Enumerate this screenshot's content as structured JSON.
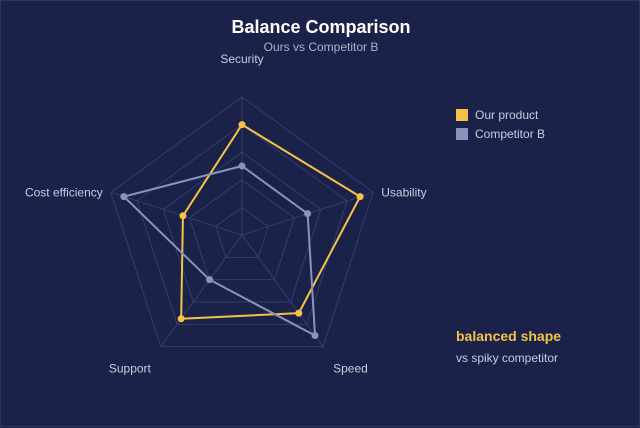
{
  "colors": {
    "background": "#1a2249",
    "grid": "#323d6e",
    "text": "#c8cde2",
    "series_ours": "#f4c245",
    "series_competitor": "#8a93c0",
    "accent_note": "#f4c245"
  },
  "annotation": {
    "title": "balanced shape",
    "subtitle": "vs spiky competitor"
  },
  "chart_data": {
    "type": "radar",
    "title": "Balance Comparison",
    "subtitle": "Ours vs Competitor B",
    "axes": [
      "Security",
      "Usability",
      "Speed",
      "Support",
      "Cost efficiency"
    ],
    "range": [
      0,
      100
    ],
    "grid_levels": [
      20,
      40,
      60,
      80,
      100
    ],
    "grid": true,
    "legend_position": "top-right",
    "series": [
      {
        "name": "Our product",
        "values": [
          80,
          90,
          70,
          75,
          45
        ],
        "color": "#f4c245"
      },
      {
        "name": "Competitor B",
        "values": [
          50,
          50,
          90,
          40,
          90
        ],
        "color": "#8a93c0"
      }
    ]
  }
}
